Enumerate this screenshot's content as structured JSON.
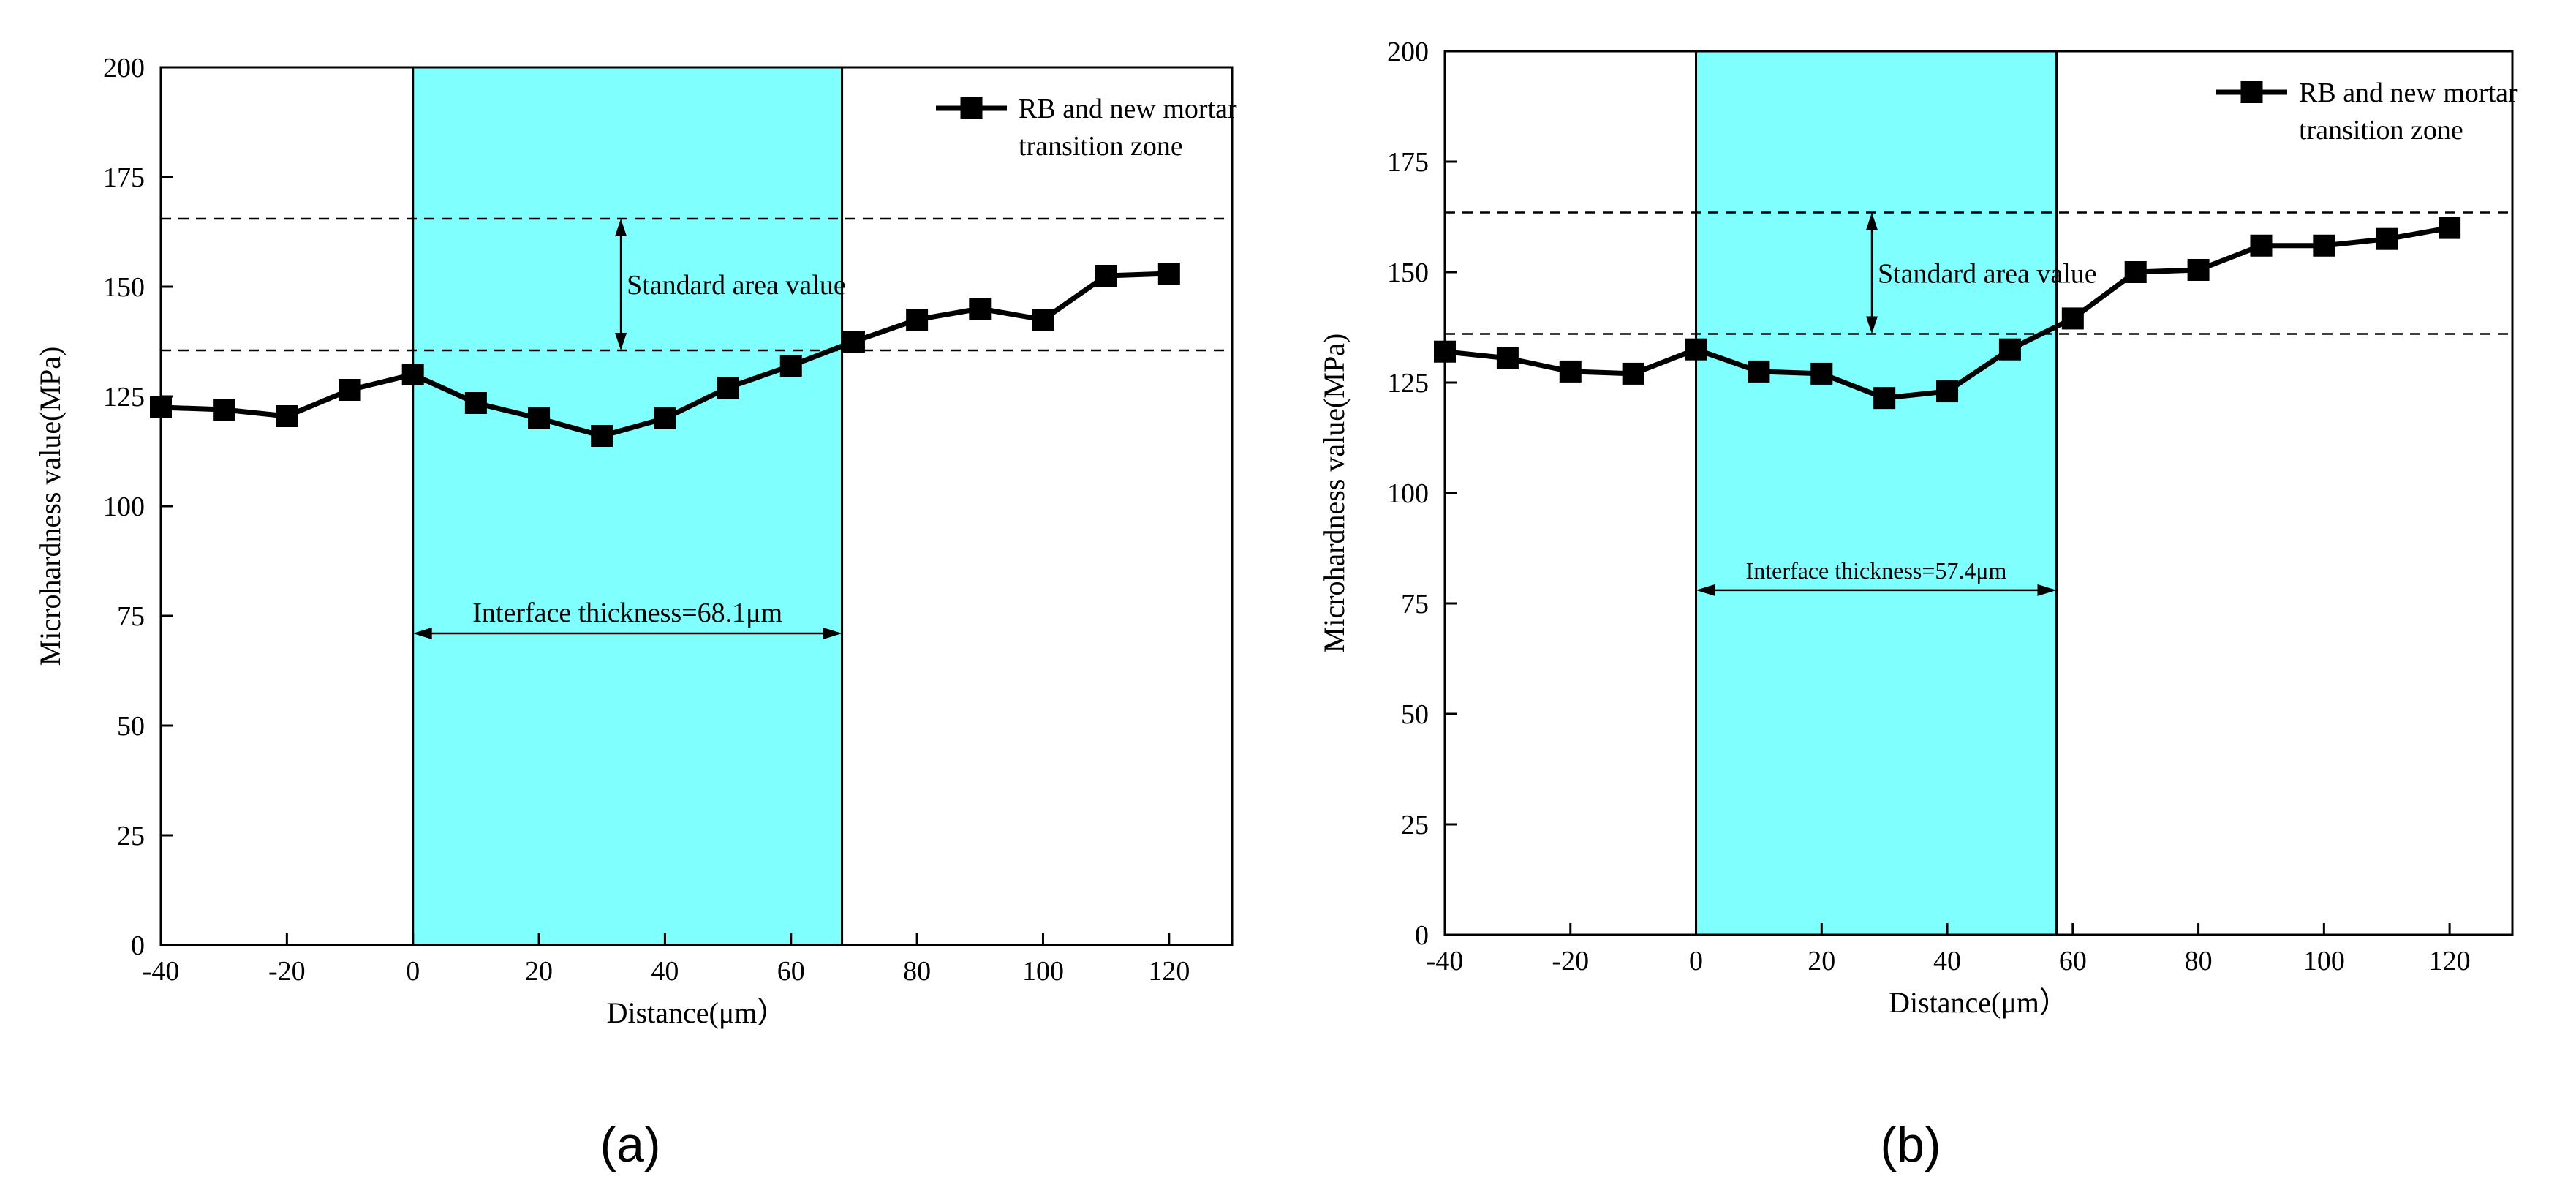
{
  "chart_data": [
    {
      "id": "a",
      "panel_label": "(a)",
      "type": "line",
      "xlabel": "Distance(μm）",
      "ylabel": "Microhardness value(MPa)",
      "xlim": [
        -40,
        130
      ],
      "ylim": [
        0,
        200
      ],
      "xticks": [
        -40,
        -20,
        0,
        20,
        40,
        60,
        80,
        100,
        120
      ],
      "yticks": [
        0,
        25,
        50,
        75,
        100,
        125,
        150,
        175,
        200
      ],
      "legend": "RB and new mortar transition zone",
      "legend_lines": [
        "RB and new mortar",
        "transition zone"
      ],
      "legend_position": "top-right",
      "series": [
        {
          "name": "RB and new mortar transition zone",
          "x": [
            -40,
            -30,
            -20,
            -10,
            0,
            10,
            20,
            30,
            40,
            50,
            60,
            70,
            80,
            90,
            100,
            110,
            120
          ],
          "y": [
            122.5,
            122,
            120.5,
            126.5,
            130,
            123.5,
            120,
            116,
            120,
            127,
            132,
            137.5,
            142.5,
            145,
            142.5,
            152.5,
            153
          ]
        }
      ],
      "interface_zone": {
        "x_start": 0,
        "x_end": 68.1,
        "color": "#80ffff"
      },
      "standard_area": {
        "lower": 135.5,
        "upper": 165.5,
        "label": "Standard area value",
        "arrow_x": 33
      },
      "thickness_annotation": {
        "label": "Interface thickness=68.1μm",
        "y": 71
      }
    },
    {
      "id": "b",
      "panel_label": "(b)",
      "type": "line",
      "xlabel": "Distance(μm）",
      "ylabel": "Microhardness value(MPa)",
      "xlim": [
        -40,
        130
      ],
      "ylim": [
        0,
        200
      ],
      "xticks": [
        -40,
        -20,
        0,
        20,
        40,
        60,
        80,
        100,
        120
      ],
      "yticks": [
        0,
        25,
        50,
        75,
        100,
        125,
        150,
        175,
        200
      ],
      "legend": "RB and new mortar transition zone",
      "legend_lines": [
        "RB and new mortar",
        "transition zone"
      ],
      "legend_position": "top-right",
      "series": [
        {
          "name": "RB and new mortar transition zone",
          "x": [
            -40,
            -30,
            -20,
            -10,
            0,
            10,
            20,
            30,
            40,
            50,
            60,
            70,
            80,
            90,
            100,
            110,
            120
          ],
          "y": [
            132,
            130.5,
            127.5,
            127,
            132.5,
            127.5,
            127,
            121.5,
            123,
            132.5,
            139.5,
            150,
            150.5,
            156,
            156,
            157.5,
            160
          ]
        }
      ],
      "interface_zone": {
        "x_start": 0,
        "x_end": 57.4,
        "color": "#80ffff"
      },
      "standard_area": {
        "lower": 136,
        "upper": 163.5,
        "label": "Standard area value",
        "arrow_x": 28
      },
      "thickness_annotation": {
        "label": "Interface thickness=57.4μm",
        "y": 78
      }
    }
  ]
}
